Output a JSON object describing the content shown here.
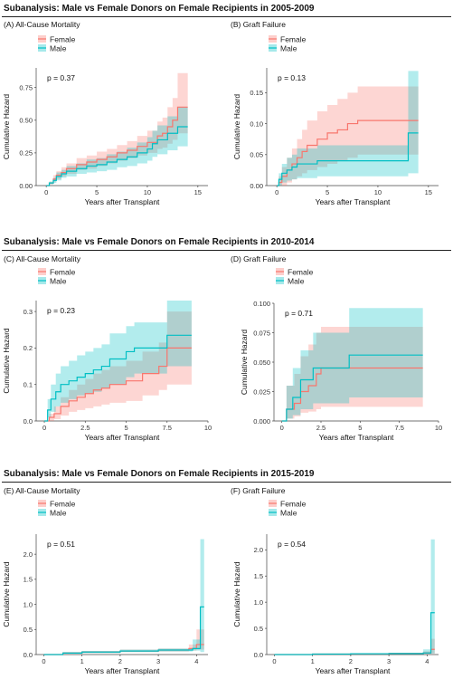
{
  "colors": {
    "female": "#F8766D",
    "male": "#00BFC4"
  },
  "sections": [
    {
      "title": "Subanalysis: Male vs Female Donors on Female Recipients in 2005-2009",
      "panels": [
        {
          "title": "(A) All-Cause Mortality",
          "pvalue": "p = 0.37"
        },
        {
          "title": "(B) Graft Failure",
          "pvalue": "p = 0.13"
        }
      ]
    },
    {
      "title": "Subanalysis: Male vs Female Donors on Female Recipients in 2010-2014",
      "panels": [
        {
          "title": "(C) All-Cause Mortality",
          "pvalue": "p = 0.23"
        },
        {
          "title": "(D) Graft Failure",
          "pvalue": "p = 0.71"
        }
      ]
    },
    {
      "title": "Subanalysis: Male vs Female Donors on Female Recipients in 2015-2019",
      "panels": [
        {
          "title": "(E) All-Cause Mortality",
          "pvalue": "p = 0.51"
        },
        {
          "title": "(F) Graft Failure",
          "pvalue": "p = 0.54"
        }
      ]
    }
  ],
  "chart_data": [
    {
      "id": "A",
      "type": "line",
      "xlabel": "Years after Transplant",
      "ylabel": "Cumulative Hazard",
      "xlim": [
        -1,
        16
      ],
      "ylim": [
        0,
        0.9
      ],
      "xticks": [
        0,
        5,
        10,
        15
      ],
      "yticks": [
        0,
        0.25,
        0.5,
        0.75
      ],
      "xtick_labels": [
        "0",
        "5",
        "10",
        "15"
      ],
      "ytick_labels": [
        "0.00",
        "0.25",
        "0.50",
        "0.75"
      ],
      "legend": [
        "Female",
        "Male"
      ],
      "legend_position": "top",
      "series": [
        {
          "name": "Female",
          "x": [
            0,
            0.3,
            0.7,
            1.0,
            1.5,
            2.0,
            3.0,
            4.0,
            5.0,
            6.0,
            7.0,
            8.0,
            9.0,
            10.0,
            11.0,
            11.5,
            12.0,
            12.5,
            13.0,
            14.0
          ],
          "y": [
            0,
            0.02,
            0.05,
            0.08,
            0.1,
            0.13,
            0.16,
            0.18,
            0.2,
            0.22,
            0.25,
            0.27,
            0.3,
            0.33,
            0.38,
            0.4,
            0.45,
            0.5,
            0.6,
            0.6
          ],
          "lower": [
            0,
            0.01,
            0.03,
            0.05,
            0.07,
            0.09,
            0.12,
            0.13,
            0.15,
            0.17,
            0.19,
            0.21,
            0.23,
            0.25,
            0.28,
            0.29,
            0.32,
            0.35,
            0.4,
            0.4
          ],
          "upper": [
            0,
            0.03,
            0.08,
            0.11,
            0.14,
            0.17,
            0.21,
            0.23,
            0.26,
            0.28,
            0.31,
            0.34,
            0.38,
            0.42,
            0.49,
            0.52,
            0.6,
            0.67,
            0.86,
            0.86
          ]
        },
        {
          "name": "Male",
          "x": [
            0,
            0.3,
            0.7,
            1.0,
            1.5,
            2.0,
            3.0,
            4.0,
            5.0,
            6.0,
            7.0,
            8.0,
            9.0,
            10.0,
            10.5,
            11.0,
            12.0,
            13.0,
            14.0
          ],
          "y": [
            0,
            0.02,
            0.04,
            0.07,
            0.09,
            0.11,
            0.13,
            0.15,
            0.16,
            0.18,
            0.2,
            0.22,
            0.25,
            0.28,
            0.32,
            0.35,
            0.4,
            0.45,
            0.45
          ],
          "lower": [
            0,
            0.01,
            0.02,
            0.04,
            0.06,
            0.07,
            0.09,
            0.1,
            0.11,
            0.12,
            0.14,
            0.15,
            0.17,
            0.19,
            0.22,
            0.24,
            0.27,
            0.3,
            0.3
          ],
          "upper": [
            0,
            0.03,
            0.06,
            0.1,
            0.12,
            0.15,
            0.17,
            0.2,
            0.21,
            0.24,
            0.26,
            0.29,
            0.33,
            0.37,
            0.42,
            0.46,
            0.53,
            0.6,
            0.6
          ]
        }
      ]
    },
    {
      "id": "B",
      "type": "line",
      "xlabel": "Years after Transplant",
      "ylabel": "Cumulative Hazard",
      "xlim": [
        -1,
        16
      ],
      "ylim": [
        0,
        0.19
      ],
      "xticks": [
        0,
        5,
        10,
        15
      ],
      "yticks": [
        0,
        0.05,
        0.1,
        0.15
      ],
      "xtick_labels": [
        "0",
        "5",
        "10",
        "15"
      ],
      "ytick_labels": [
        "0.00",
        "0.05",
        "0.10",
        "0.15"
      ],
      "legend": [
        "Female",
        "Male"
      ],
      "legend_position": "top",
      "series": [
        {
          "name": "Female",
          "x": [
            0,
            0.2,
            0.5,
            1.0,
            1.5,
            2.0,
            2.5,
            3.0,
            4.0,
            5.0,
            6.0,
            7.0,
            8.0,
            14.0
          ],
          "y": [
            0,
            0.005,
            0.015,
            0.025,
            0.035,
            0.045,
            0.055,
            0.065,
            0.075,
            0.085,
            0.09,
            0.1,
            0.105,
            0.105
          ],
          "lower": [
            0,
            0.0,
            0.0,
            0.005,
            0.01,
            0.015,
            0.02,
            0.025,
            0.03,
            0.035,
            0.04,
            0.045,
            0.05,
            0.05
          ],
          "upper": [
            0,
            0.015,
            0.03,
            0.045,
            0.06,
            0.075,
            0.09,
            0.105,
            0.12,
            0.13,
            0.14,
            0.15,
            0.16,
            0.16
          ]
        },
        {
          "name": "Male",
          "x": [
            0,
            0.2,
            0.5,
            1.0,
            1.5,
            2.0,
            3.0,
            4.0,
            5.0,
            13.0,
            14.0
          ],
          "y": [
            0,
            0.01,
            0.02,
            0.025,
            0.03,
            0.035,
            0.035,
            0.04,
            0.04,
            0.085,
            0.085
          ],
          "lower": [
            0,
            0.0,
            0.005,
            0.008,
            0.01,
            0.012,
            0.012,
            0.015,
            0.015,
            0.02,
            0.02
          ],
          "upper": [
            0,
            0.02,
            0.035,
            0.045,
            0.05,
            0.06,
            0.06,
            0.065,
            0.065,
            0.185,
            0.185
          ]
        }
      ]
    },
    {
      "id": "C",
      "type": "line",
      "xlabel": "Years after Transplant",
      "ylabel": "Cumulative Hazard",
      "xlim": [
        -0.5,
        10
      ],
      "ylim": [
        0,
        0.33
      ],
      "xticks": [
        0,
        2.5,
        5,
        7.5,
        10
      ],
      "yticks": [
        0,
        0.1,
        0.2,
        0.3
      ],
      "xtick_labels": [
        "0",
        "2.5",
        "5",
        "7.5",
        "10"
      ],
      "ytick_labels": [
        "0.0",
        "0.1",
        "0.2",
        "0.3"
      ],
      "legend": [
        "Female",
        "Male"
      ],
      "legend_position": "top",
      "series": [
        {
          "name": "Female",
          "x": [
            0,
            0.3,
            0.6,
            1.0,
            1.5,
            2.0,
            2.5,
            3.0,
            3.5,
            4.0,
            5.0,
            6.0,
            7.0,
            7.5,
            9.0
          ],
          "y": [
            0,
            0.01,
            0.02,
            0.04,
            0.055,
            0.065,
            0.075,
            0.085,
            0.09,
            0.1,
            0.11,
            0.13,
            0.15,
            0.2,
            0.2
          ],
          "lower": [
            0,
            0.0,
            0.005,
            0.015,
            0.025,
            0.03,
            0.035,
            0.04,
            0.045,
            0.05,
            0.055,
            0.07,
            0.085,
            0.1,
            0.1
          ],
          "upper": [
            0,
            0.02,
            0.04,
            0.065,
            0.085,
            0.1,
            0.115,
            0.13,
            0.14,
            0.15,
            0.165,
            0.19,
            0.215,
            0.3,
            0.3
          ]
        },
        {
          "name": "Male",
          "x": [
            0,
            0.2,
            0.4,
            0.7,
            1.0,
            1.5,
            2.0,
            2.5,
            3.0,
            3.5,
            4.0,
            5.0,
            5.5,
            6.0,
            7.5,
            9.0
          ],
          "y": [
            0,
            0.03,
            0.06,
            0.08,
            0.1,
            0.11,
            0.12,
            0.13,
            0.14,
            0.15,
            0.17,
            0.19,
            0.2,
            0.2,
            0.235,
            0.235
          ],
          "lower": [
            0,
            0.01,
            0.025,
            0.04,
            0.05,
            0.06,
            0.07,
            0.075,
            0.08,
            0.09,
            0.1,
            0.12,
            0.13,
            0.13,
            0.15,
            0.15
          ],
          "upper": [
            0,
            0.06,
            0.1,
            0.13,
            0.15,
            0.165,
            0.18,
            0.19,
            0.2,
            0.21,
            0.24,
            0.26,
            0.27,
            0.27,
            0.33,
            0.33
          ]
        }
      ]
    },
    {
      "id": "D",
      "type": "line",
      "xlabel": "Years after Transplant",
      "ylabel": "Cumulative Hazard",
      "xlim": [
        -0.5,
        10
      ],
      "ylim": [
        0,
        0.1
      ],
      "xticks": [
        0,
        2.5,
        5,
        7.5,
        10
      ],
      "yticks": [
        0,
        0.025,
        0.05,
        0.075,
        0.1
      ],
      "xtick_labels": [
        "0",
        "2.5",
        "5",
        "7.5",
        "10"
      ],
      "ytick_labels": [
        "0.000",
        "0.025",
        "0.050",
        "0.075",
        "0.100"
      ],
      "legend": [
        "Female",
        "Male"
      ],
      "legend_position": "top",
      "series": [
        {
          "name": "Female",
          "x": [
            0,
            0.3,
            0.8,
            1.2,
            1.7,
            2.2,
            2.5,
            9.0
          ],
          "y": [
            0,
            0.01,
            0.015,
            0.025,
            0.03,
            0.04,
            0.045,
            0.045
          ],
          "lower": [
            0,
            0.002,
            0.004,
            0.007,
            0.008,
            0.01,
            0.012,
            0.012
          ],
          "upper": [
            0,
            0.03,
            0.04,
            0.055,
            0.065,
            0.075,
            0.08,
            0.08
          ]
        },
        {
          "name": "Male",
          "x": [
            0,
            0.3,
            0.7,
            1.2,
            2.0,
            4.3,
            9.0
          ],
          "y": [
            0,
            0.01,
            0.02,
            0.035,
            0.045,
            0.056,
            0.056
          ],
          "lower": [
            0,
            0.002,
            0.005,
            0.01,
            0.015,
            0.02,
            0.02
          ],
          "upper": [
            0,
            0.03,
            0.045,
            0.06,
            0.075,
            0.096,
            0.096
          ]
        }
      ]
    },
    {
      "id": "E",
      "type": "line",
      "xlabel": "Years after Transplant",
      "ylabel": "Cumulative Hazard",
      "xlim": [
        -0.2,
        4.3
      ],
      "ylim": [
        0,
        2.4
      ],
      "xticks": [
        0,
        1,
        2,
        3,
        4
      ],
      "yticks": [
        0,
        0.5,
        1.0,
        1.5,
        2.0
      ],
      "xtick_labels": [
        "0",
        "1",
        "2",
        "3",
        "4"
      ],
      "ytick_labels": [
        "0.0",
        "0.5",
        "1.0",
        "1.5",
        "2.0"
      ],
      "legend": [
        "Female",
        "Male"
      ],
      "legend_position": "top",
      "series": [
        {
          "name": "Female",
          "x": [
            0,
            0.5,
            1.0,
            2.0,
            3.0,
            3.8,
            4.0,
            4.2
          ],
          "y": [
            0,
            0.03,
            0.05,
            0.07,
            0.09,
            0.12,
            0.2,
            0.2
          ],
          "lower": [
            0,
            0.02,
            0.03,
            0.05,
            0.06,
            0.08,
            0.1,
            0.1
          ],
          "upper": [
            0,
            0.05,
            0.07,
            0.1,
            0.12,
            0.2,
            0.5,
            0.5
          ]
        },
        {
          "name": "Male",
          "x": [
            0,
            0.5,
            1.0,
            2.0,
            3.0,
            3.9,
            4.1,
            4.2
          ],
          "y": [
            0,
            0.03,
            0.05,
            0.07,
            0.09,
            0.12,
            0.95,
            0.95
          ],
          "lower": [
            0,
            0.02,
            0.03,
            0.05,
            0.06,
            0.08,
            0.05,
            0.05
          ],
          "upper": [
            0,
            0.05,
            0.07,
            0.1,
            0.12,
            0.3,
            2.3,
            2.3
          ]
        }
      ]
    },
    {
      "id": "F",
      "type": "line",
      "xlabel": "Years after Transplant",
      "ylabel": "Cumulative Hazard",
      "xlim": [
        -0.2,
        4.3
      ],
      "ylim": [
        0,
        2.3
      ],
      "xticks": [
        0,
        1,
        2,
        3,
        4
      ],
      "yticks": [
        0,
        0.5,
        1.0,
        1.5,
        2.0
      ],
      "xtick_labels": [
        "0",
        "1",
        "2",
        "3",
        "4"
      ],
      "ytick_labels": [
        "0.0",
        "0.5",
        "1.0",
        "1.5",
        "2.0"
      ],
      "legend": [
        "Female",
        "Male"
      ],
      "legend_position": "top",
      "series": [
        {
          "name": "Female",
          "x": [
            0,
            1.0,
            2.0,
            3.0,
            3.9,
            4.1,
            4.2
          ],
          "y": [
            0,
            0.01,
            0.015,
            0.02,
            0.03,
            0.1,
            0.1
          ],
          "lower": [
            0,
            0.005,
            0.01,
            0.01,
            0.015,
            0.02,
            0.02
          ],
          "upper": [
            0,
            0.02,
            0.025,
            0.035,
            0.06,
            0.3,
            0.3
          ]
        },
        {
          "name": "Male",
          "x": [
            0,
            1.0,
            2.0,
            3.0,
            3.9,
            4.1,
            4.2
          ],
          "y": [
            0,
            0.01,
            0.015,
            0.02,
            0.03,
            0.8,
            0.8
          ],
          "lower": [
            0,
            0.005,
            0.01,
            0.01,
            0.015,
            0.02,
            0.02
          ],
          "upper": [
            0,
            0.02,
            0.025,
            0.035,
            0.1,
            2.2,
            2.2
          ]
        }
      ]
    }
  ]
}
